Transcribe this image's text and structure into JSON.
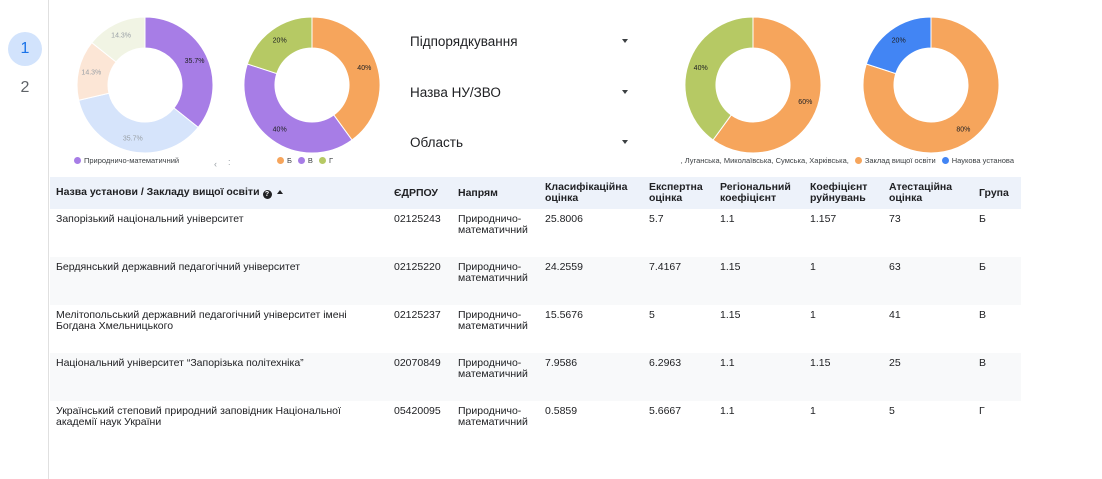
{
  "page_nav": {
    "pages": [
      "1",
      "2"
    ],
    "active": "1"
  },
  "filters": [
    {
      "label": "Підпорядкування"
    },
    {
      "label": "Назва НУ/ЗВО"
    },
    {
      "label": "Область"
    }
  ],
  "chart_data": [
    {
      "type": "pie",
      "donut": true,
      "categories": [
        "Природничо-математичний",
        "",
        "",
        ""
      ],
      "values": [
        35.7,
        35.7,
        14.3,
        14.3
      ],
      "labels": [
        "35.7%",
        "35.7%",
        "14.3%",
        "14.3%"
      ],
      "colors": [
        "#a77de6",
        "#d6e4fb",
        "#fce6d6",
        "#f1f4e4"
      ],
      "label_colors": [
        "#202124",
        "#9aa0a6",
        "#9aa0a6",
        "#9aa0a6"
      ],
      "legend": [
        {
          "label": "Природничо-математичний",
          "color": "#a77de6"
        }
      ],
      "legend_position": "bottom"
    },
    {
      "type": "pie",
      "donut": true,
      "categories": [
        "Б",
        "В",
        "Г"
      ],
      "values": [
        40,
        40,
        20
      ],
      "labels": [
        "40%",
        "40%",
        "20%"
      ],
      "colors": [
        "#f6a55c",
        "#a77de6",
        "#b6c964"
      ],
      "label_colors": [
        "#202124",
        "#202124",
        "#202124"
      ],
      "legend": [
        {
          "label": "Б",
          "color": "#f6a55c"
        },
        {
          "label": "В",
          "color": "#a77de6"
        },
        {
          "label": "Г",
          "color": "#b6c964"
        }
      ],
      "legend_position": "bottom"
    },
    {
      "type": "pie",
      "donut": true,
      "categories": [
        "",
        ""
      ],
      "values": [
        60,
        40
      ],
      "labels": [
        "60%",
        "40%"
      ],
      "colors": [
        "#f6a55c",
        "#b6c964"
      ],
      "label_colors": [
        "#202124",
        "#202124"
      ],
      "legend_position": "bottom"
    },
    {
      "type": "pie",
      "donut": true,
      "categories": [
        "Заклад вищої освіти",
        "Наукова установа"
      ],
      "values": [
        80,
        20
      ],
      "labels": [
        "80%",
        "20%"
      ],
      "colors": [
        "#f6a55c",
        "#4285f4"
      ],
      "label_colors": [
        "#202124",
        "#202124"
      ],
      "legend": [
        {
          "label": ", Луганська, Миколаївська, Сумська, Харківська,",
          "color": ""
        },
        {
          "label": "Заклад вищої освіти",
          "color": "#f6a55c"
        },
        {
          "label": "Наукова установа",
          "color": "#4285f4"
        }
      ],
      "legend_position": "bottom"
    }
  ],
  "table": {
    "columns": [
      "Назва установи / Закладу вищої освіти",
      "ЄДРПОУ",
      "Напрям",
      "Класифікаційна оцінка",
      "Експертна оцінка",
      "Регіональний коефіцієнт",
      "Коефіцієнт руйнувань",
      "Атестаційна оцінка",
      "Група"
    ],
    "rows": [
      [
        "Запорізький національний університет",
        "02125243",
        "Природничо-математичний",
        "25.8006",
        "5.7",
        "1.1",
        "1.157",
        "73",
        "Б"
      ],
      [
        "Бердянський державний педагогічний університет",
        "02125220",
        "Природничо-математичний",
        "24.2559",
        "7.4167",
        "1.15",
        "1",
        "63",
        "Б"
      ],
      [
        "Мелітопольський державний педагогічний університет імені Богдана Хмельницького",
        "02125237",
        "Природничо-математичний",
        "15.5676",
        "5",
        "1.15",
        "1",
        "41",
        "В"
      ],
      [
        "Національний університет “Запорізька політехніка”",
        "02070849",
        "Природничо-математичний",
        "7.9586",
        "6.2963",
        "1.1",
        "1.15",
        "25",
        "В"
      ],
      [
        "Український степовий природний заповідник Національної академії наук України",
        "05420095",
        "Природничо-математичний",
        "0.5859",
        "5.6667",
        "1.1",
        "1",
        "5",
        "Г"
      ]
    ]
  }
}
